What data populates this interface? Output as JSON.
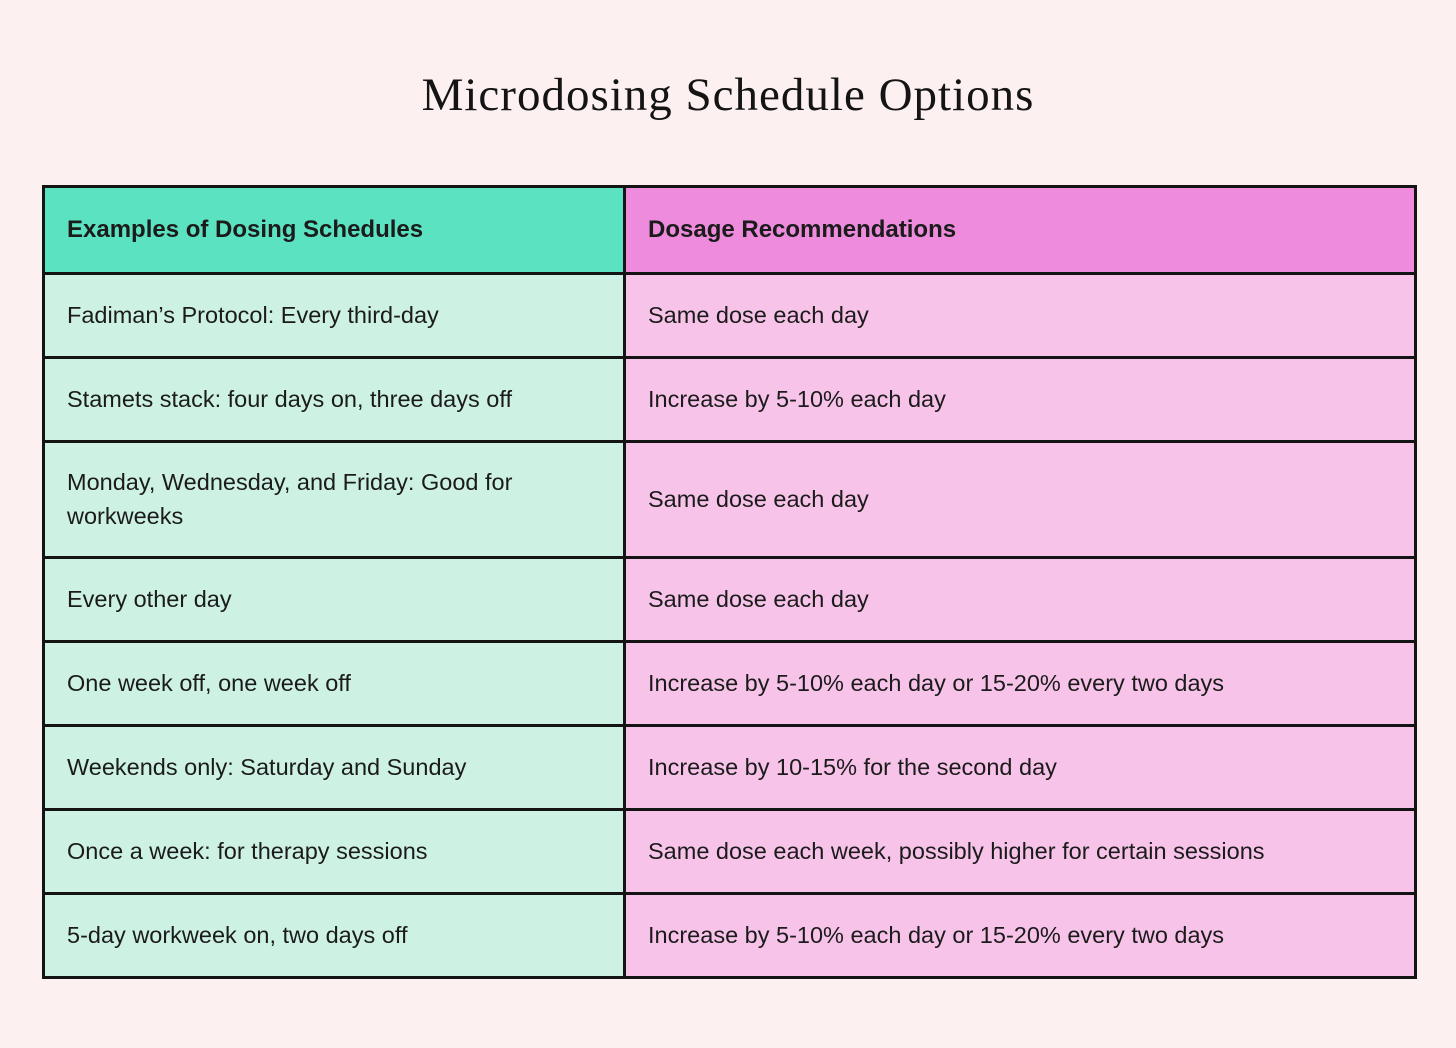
{
  "page": {
    "title": "Microdosing Schedule Options",
    "background_color": "#fdf0f1"
  },
  "table": {
    "headers": [
      {
        "label": "Examples of Dosing Schedules",
        "bg": "#5be3c1"
      },
      {
        "label": "Dosage Recommendations",
        "bg": "#ee8bdd"
      }
    ],
    "rows": [
      {
        "schedule": "Fadiman’s Protocol: Every third-day",
        "dosage": "Same dose each day"
      },
      {
        "schedule": "Stamets stack: four days on, three days off",
        "dosage": "Increase by 5-10% each day"
      },
      {
        "schedule": "Monday, Wednesday, and Friday: Good for workweeks",
        "dosage": "Same dose each day"
      },
      {
        "schedule": "Every other day",
        "dosage": "Same dose each day"
      },
      {
        "schedule": "One week off, one week off",
        "dosage": "Increase by 5-10% each day or 15-20% every two days"
      },
      {
        "schedule": "Weekends only: Saturday and Sunday",
        "dosage": "Increase by 10-15% for the second day"
      },
      {
        "schedule": "Once a week: for therapy sessions",
        "dosage": "Same dose each week, possibly higher for certain sessions"
      },
      {
        "schedule": "5-day workweek on, two days off",
        "dosage": "Increase by 5-10% each day or 15-20% every two days"
      }
    ],
    "colors": {
      "header_left_bg": "#5be3c1",
      "header_right_bg": "#ee8bdd",
      "cell_left_bg": "#cdf2e4",
      "cell_right_bg": "#f7c3e9",
      "border": "#141414"
    }
  }
}
